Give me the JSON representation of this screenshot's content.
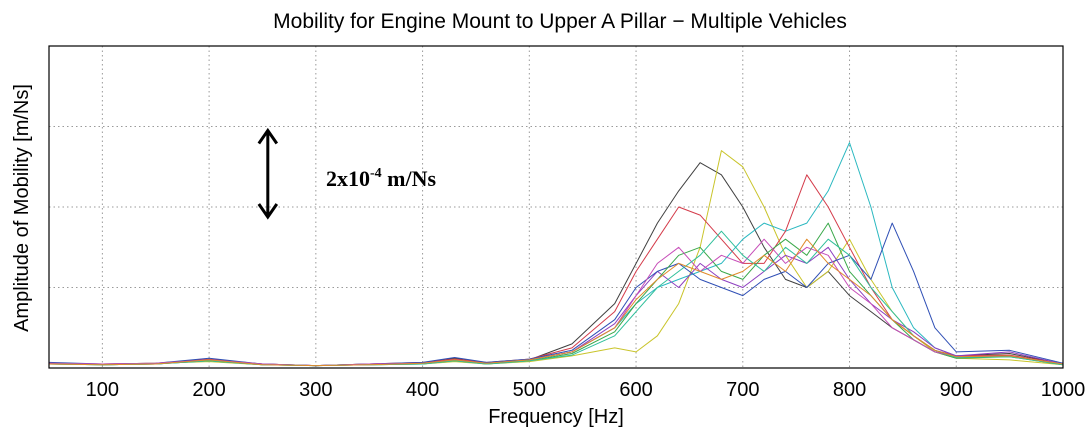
{
  "chart_data": {
    "type": "line",
    "title": "Mobility for Engine Mount to Upper A Pillar − Multiple Vehicles",
    "xlabel": "Frequency [Hz]",
    "ylabel": "Amplitude of Mobility [m/Ns]",
    "xlim": [
      50,
      1000
    ],
    "ylim": [
      0,
      4
    ],
    "xticks": [
      100,
      200,
      300,
      400,
      500,
      600,
      700,
      800,
      900,
      1000
    ],
    "xtick_labels": [
      "100",
      "200",
      "300",
      "400",
      "500",
      "600",
      "700",
      "800",
      "900",
      "1000"
    ],
    "yticks": [
      0,
      1,
      2,
      3,
      4
    ],
    "yaxis_units_note": "y in multiples of 2x10^-4 m/Ns (one grid division)",
    "grid": true,
    "annotation": {
      "text": "2x10",
      "superscript": "-4",
      "suffix": " m/Ns",
      "arrow_from_y": 3,
      "arrow_to_y": 2,
      "arrow_x": 255
    },
    "series": [
      {
        "color": "#404040",
        "x": [
          50,
          100,
          150,
          200,
          250,
          300,
          350,
          400,
          430,
          460,
          500,
          540,
          580,
          600,
          620,
          640,
          660,
          680,
          700,
          720,
          740,
          760,
          780,
          800,
          820,
          840,
          860,
          880,
          900,
          950,
          1000
        ],
        "y": [
          0.06,
          0.04,
          0.05,
          0.1,
          0.05,
          0.03,
          0.05,
          0.06,
          0.12,
          0.06,
          0.1,
          0.3,
          0.8,
          1.3,
          1.8,
          2.2,
          2.55,
          2.4,
          2.0,
          1.5,
          1.1,
          1.0,
          1.2,
          0.9,
          0.7,
          0.5,
          0.35,
          0.2,
          0.15,
          0.18,
          0.05
        ]
      },
      {
        "color": "#c9c42a",
        "x": [
          50,
          100,
          150,
          200,
          250,
          300,
          350,
          400,
          430,
          460,
          500,
          540,
          580,
          600,
          620,
          640,
          660,
          680,
          700,
          720,
          740,
          760,
          780,
          800,
          820,
          840,
          860,
          880,
          900,
          950,
          1000
        ],
        "y": [
          0.05,
          0.05,
          0.06,
          0.08,
          0.04,
          0.03,
          0.04,
          0.05,
          0.08,
          0.05,
          0.08,
          0.15,
          0.25,
          0.2,
          0.4,
          0.8,
          1.5,
          2.7,
          2.5,
          2.0,
          1.4,
          1.0,
          1.2,
          1.6,
          1.1,
          0.7,
          0.4,
          0.2,
          0.12,
          0.1,
          0.04
        ]
      },
      {
        "color": "#2ab8c0",
        "x": [
          50,
          100,
          150,
          200,
          250,
          300,
          350,
          400,
          430,
          460,
          500,
          540,
          580,
          600,
          620,
          640,
          660,
          680,
          700,
          720,
          740,
          760,
          780,
          800,
          820,
          840,
          860,
          880,
          900,
          950,
          1000
        ],
        "y": [
          0.05,
          0.04,
          0.05,
          0.09,
          0.04,
          0.03,
          0.05,
          0.06,
          0.1,
          0.06,
          0.1,
          0.2,
          0.5,
          0.8,
          1.0,
          1.1,
          1.2,
          1.3,
          1.6,
          1.8,
          1.7,
          1.8,
          2.2,
          2.8,
          2.0,
          1.0,
          0.5,
          0.25,
          0.15,
          0.15,
          0.05
        ]
      },
      {
        "color": "#d43b4a",
        "x": [
          50,
          100,
          150,
          200,
          250,
          300,
          350,
          400,
          430,
          460,
          500,
          540,
          580,
          600,
          620,
          640,
          660,
          680,
          700,
          720,
          740,
          760,
          780,
          800,
          820,
          840,
          860,
          880,
          900,
          950,
          1000
        ],
        "y": [
          0.06,
          0.05,
          0.06,
          0.11,
          0.05,
          0.03,
          0.05,
          0.07,
          0.11,
          0.07,
          0.11,
          0.25,
          0.7,
          1.2,
          1.6,
          2.0,
          1.9,
          1.6,
          1.3,
          1.3,
          1.7,
          2.4,
          2.0,
          1.5,
          1.0,
          0.6,
          0.4,
          0.22,
          0.15,
          0.16,
          0.05
        ]
      },
      {
        "color": "#8e3fbf",
        "x": [
          50,
          100,
          150,
          200,
          250,
          300,
          350,
          400,
          430,
          460,
          500,
          540,
          580,
          600,
          620,
          640,
          660,
          680,
          700,
          720,
          740,
          760,
          780,
          800,
          820,
          840,
          860,
          880,
          900,
          950,
          1000
        ],
        "y": [
          0.05,
          0.05,
          0.05,
          0.1,
          0.05,
          0.03,
          0.04,
          0.06,
          0.1,
          0.06,
          0.1,
          0.2,
          0.55,
          0.9,
          1.2,
          1.0,
          1.3,
          1.1,
          1.0,
          1.2,
          1.4,
          1.3,
          1.5,
          1.1,
          0.8,
          0.6,
          0.45,
          0.25,
          0.15,
          0.2,
          0.05
        ]
      },
      {
        "color": "#2f4fb5",
        "x": [
          50,
          100,
          150,
          200,
          250,
          300,
          350,
          400,
          430,
          460,
          500,
          540,
          580,
          600,
          620,
          640,
          660,
          680,
          700,
          720,
          740,
          760,
          780,
          800,
          820,
          840,
          860,
          880,
          900,
          950,
          1000
        ],
        "y": [
          0.07,
          0.05,
          0.06,
          0.12,
          0.05,
          0.03,
          0.05,
          0.07,
          0.13,
          0.07,
          0.11,
          0.22,
          0.6,
          1.0,
          1.2,
          1.3,
          1.1,
          1.0,
          0.9,
          1.1,
          1.2,
          1.0,
          1.3,
          1.4,
          1.1,
          1.8,
          1.2,
          0.5,
          0.2,
          0.22,
          0.06
        ]
      },
      {
        "color": "#3aa84a",
        "x": [
          50,
          100,
          150,
          200,
          250,
          300,
          350,
          400,
          430,
          460,
          500,
          540,
          580,
          600,
          620,
          640,
          660,
          680,
          700,
          720,
          740,
          760,
          780,
          800,
          820,
          840,
          860,
          880,
          900,
          950,
          1000
        ],
        "y": [
          0.05,
          0.04,
          0.05,
          0.09,
          0.04,
          0.03,
          0.04,
          0.05,
          0.09,
          0.05,
          0.09,
          0.18,
          0.45,
          0.8,
          1.1,
          1.4,
          1.5,
          1.2,
          1.1,
          1.4,
          1.6,
          1.4,
          1.8,
          1.2,
          0.9,
          0.6,
          0.35,
          0.2,
          0.12,
          0.14,
          0.04
        ]
      },
      {
        "color": "#c64cb8",
        "x": [
          50,
          100,
          150,
          200,
          250,
          300,
          350,
          400,
          430,
          460,
          500,
          540,
          580,
          600,
          620,
          640,
          660,
          680,
          700,
          720,
          740,
          760,
          780,
          800,
          820,
          840,
          860,
          880,
          900,
          950,
          1000
        ],
        "y": [
          0.06,
          0.05,
          0.06,
          0.1,
          0.05,
          0.03,
          0.05,
          0.06,
          0.1,
          0.06,
          0.1,
          0.2,
          0.5,
          0.9,
          1.3,
          1.5,
          1.2,
          1.4,
          1.3,
          1.6,
          1.3,
          1.5,
          1.4,
          1.0,
          0.8,
          0.5,
          0.35,
          0.2,
          0.14,
          0.15,
          0.05
        ]
      },
      {
        "color": "#2fbf9a",
        "x": [
          50,
          100,
          150,
          200,
          250,
          300,
          350,
          400,
          430,
          460,
          500,
          540,
          580,
          600,
          620,
          640,
          660,
          680,
          700,
          720,
          740,
          760,
          780,
          800,
          820,
          840,
          860,
          880,
          900,
          950,
          1000
        ],
        "y": [
          0.05,
          0.04,
          0.05,
          0.09,
          0.04,
          0.03,
          0.04,
          0.05,
          0.09,
          0.05,
          0.09,
          0.16,
          0.4,
          0.7,
          1.0,
          1.2,
          1.4,
          1.7,
          1.4,
          1.2,
          1.5,
          1.3,
          1.6,
          1.4,
          1.0,
          0.7,
          0.4,
          0.22,
          0.13,
          0.14,
          0.04
        ]
      },
      {
        "color": "#e08a2a",
        "x": [
          50,
          100,
          150,
          200,
          250,
          300,
          350,
          400,
          430,
          460,
          500,
          540,
          580,
          600,
          620,
          640,
          660,
          680,
          700,
          720,
          740,
          760,
          780,
          800,
          820,
          840,
          860,
          880,
          900,
          950,
          1000
        ],
        "y": [
          0.05,
          0.04,
          0.05,
          0.1,
          0.04,
          0.03,
          0.04,
          0.06,
          0.1,
          0.06,
          0.1,
          0.2,
          0.5,
          0.85,
          1.1,
          1.3,
          1.2,
          1.1,
          1.2,
          1.4,
          1.2,
          1.6,
          1.3,
          1.1,
          0.9,
          0.6,
          0.4,
          0.22,
          0.14,
          0.15,
          0.05
        ]
      }
    ]
  }
}
